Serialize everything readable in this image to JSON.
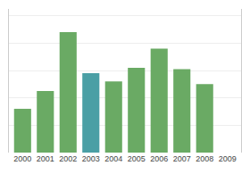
{
  "chart_data": {
    "type": "bar",
    "categories": [
      "2000",
      "2001",
      "2002",
      "2003",
      "2004",
      "2005",
      "2006",
      "2007",
      "2008",
      "2009"
    ],
    "values": [
      3.2,
      4.5,
      8.8,
      5.8,
      5.2,
      6.2,
      7.6,
      6.1,
      5.0,
      0
    ],
    "colors": [
      "#6aaa64",
      "#6aaa64",
      "#6aaa64",
      "#4a9fa5",
      "#6aaa64",
      "#6aaa64",
      "#6aaa64",
      "#6aaa64",
      "#6aaa64",
      "#6aaa64"
    ],
    "ylim": [
      0,
      10.5
    ],
    "yticks": [
      0,
      2,
      4,
      6,
      8,
      10
    ],
    "grid": true,
    "tick_labels": "x"
  }
}
